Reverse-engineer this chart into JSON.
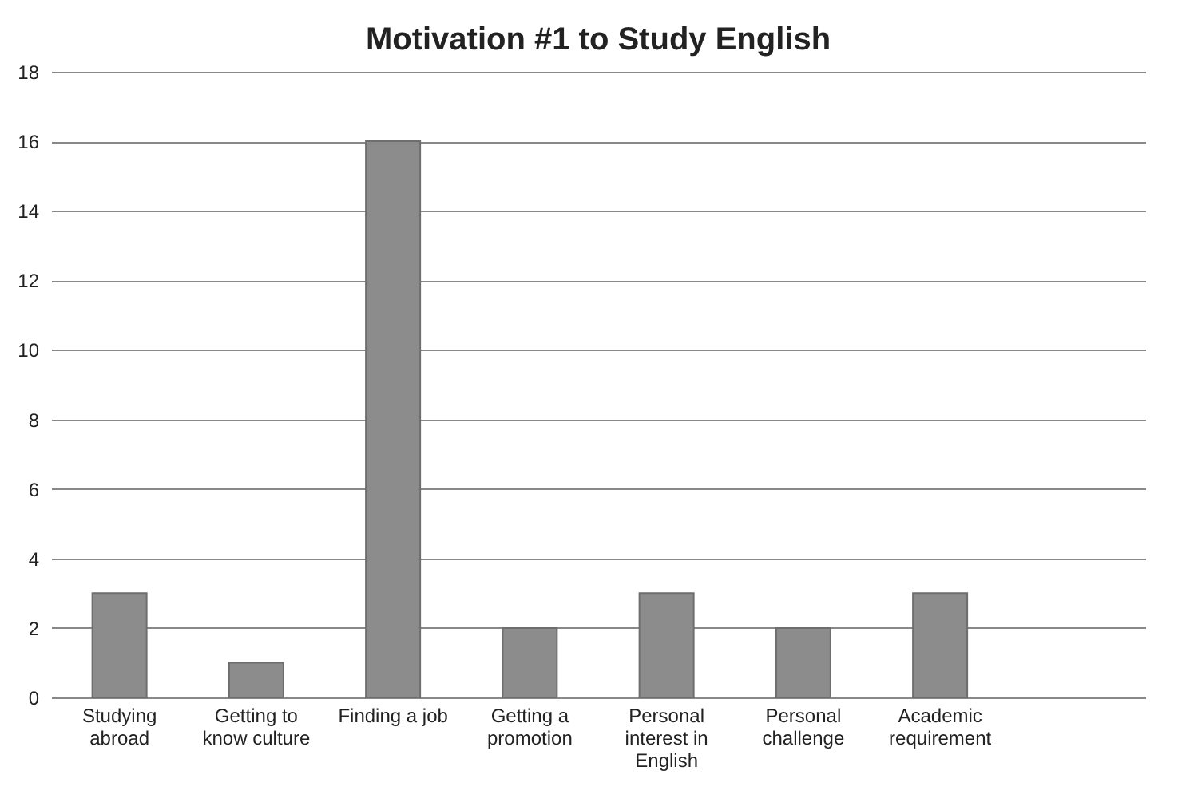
{
  "chart_data": {
    "type": "bar",
    "title": "Motivation #1 to Study English",
    "categories": [
      "Studying abroad",
      "Getting to know culture",
      "Finding a job",
      "Getting a promotion",
      "Personal interest in English",
      "Personal challenge",
      "Academic requirement",
      null
    ],
    "values": [
      3,
      1,
      16,
      2,
      3,
      2,
      3,
      null
    ],
    "color": "#8c8c8c",
    "ylim": [
      0,
      18
    ],
    "yticks": [
      0,
      2,
      4,
      6,
      8,
      10,
      12,
      14,
      16,
      18
    ],
    "grid": "y"
  }
}
